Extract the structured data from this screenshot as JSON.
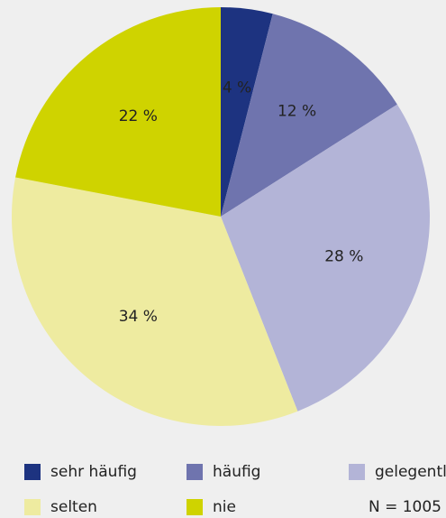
{
  "chart_data": {
    "type": "pie",
    "categories": [
      "sehr häufig",
      "häufig",
      "gelegentlich",
      "selten",
      "nie"
    ],
    "values": [
      4,
      12,
      28,
      34,
      22
    ],
    "value_labels": [
      "4 %",
      "12 %",
      "28 %",
      "34 %",
      "22 %"
    ],
    "colors": [
      "#1d3380",
      "#6f74ae",
      "#b3b4d7",
      "#eeeba0",
      "#cfd300"
    ],
    "annotation": "N = 1005"
  }
}
